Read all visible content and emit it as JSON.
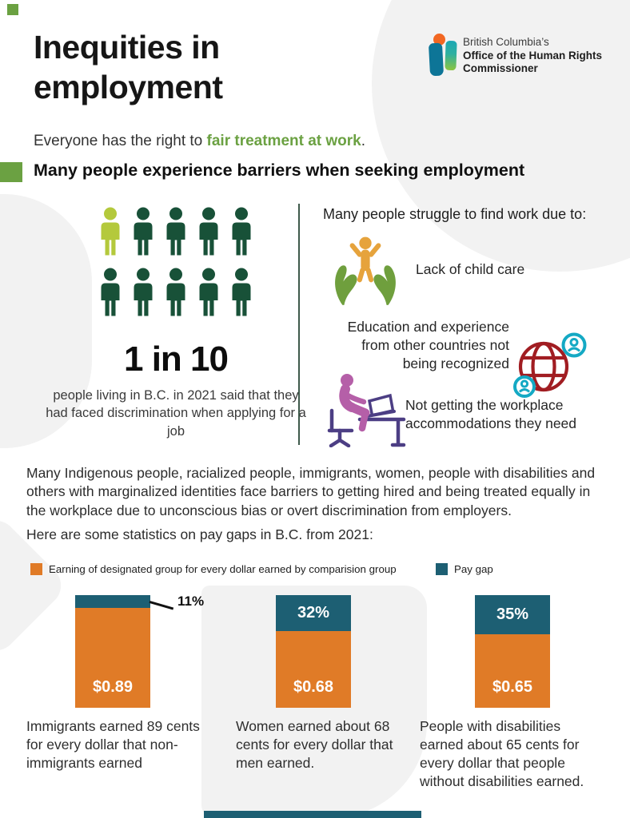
{
  "header": {
    "title": "Inequities in employment",
    "logo": {
      "line1": "British Columbia’s",
      "line2": "Office of the Human Rights",
      "line3": "Commissioner"
    },
    "intro": {
      "prefix": "Everyone has the right to ",
      "highlight": "fair treatment at work",
      "suffix": "."
    },
    "section_heading": "Many people experience barriers when seeking employment"
  },
  "discrimination_stat": {
    "pictogram": {
      "total_people": 10,
      "highlighted_people": 1
    },
    "big_stat": "1 in 10",
    "caption": "people living in B.C. in 2021 said that they had faced discrimination when applying for a job"
  },
  "barriers": {
    "heading": "Many people struggle to find work due to:",
    "items": [
      {
        "icon": "childcare-icon",
        "label": "Lack of child care"
      },
      {
        "icon": "globe-credentials-icon",
        "label": "Education and experience from other countries not being recognized"
      },
      {
        "icon": "workplace-accommodation-icon",
        "label": "Not getting the workplace accommodations they need"
      }
    ]
  },
  "body_paragraph": "Many Indigenous people, racialized people, immigrants, women, people with disabilities and others with marginalized identities face barriers to getting hired and being treated equally in the workplace due to unconscious bias or overt discrimination from employers.",
  "stats_intro": "Here are some statistics on pay gaps in B.C. from 2021:",
  "chart_data": {
    "type": "bar",
    "stacked": true,
    "ylim": [
      0,
      1
    ],
    "legend": [
      {
        "label": "Earning of designated group for every dollar earned by comparision group",
        "color": "#e07b27"
      },
      {
        "label": "Pay gap",
        "color": "#1d5f73"
      }
    ],
    "bars": [
      {
        "earning_label": "$0.89",
        "earning_value": 0.89,
        "gap_label": "11%",
        "gap_value": 0.11,
        "gap_label_position": "callout-right",
        "caption": "Immigrants earned 89 cents for every dollar that non-immigrants earned"
      },
      {
        "earning_label": "$0.68",
        "earning_value": 0.68,
        "gap_label": "32%",
        "gap_value": 0.32,
        "gap_label_position": "inside",
        "caption": "Women earned about 68 cents for every dollar that men earned."
      },
      {
        "earning_label": "$0.65",
        "earning_value": 0.65,
        "gap_label": "35%",
        "gap_value": 0.35,
        "gap_label_position": "inside",
        "caption": "People with disabilities earned about 65 cents for every dollar that people without disabilities earned."
      }
    ]
  },
  "colors": {
    "accent_green": "#6ba142",
    "person_dark_green": "#185138",
    "person_light_green": "#b4c93c",
    "bar_orange": "#e07b27",
    "bar_teal": "#1d5f73"
  }
}
